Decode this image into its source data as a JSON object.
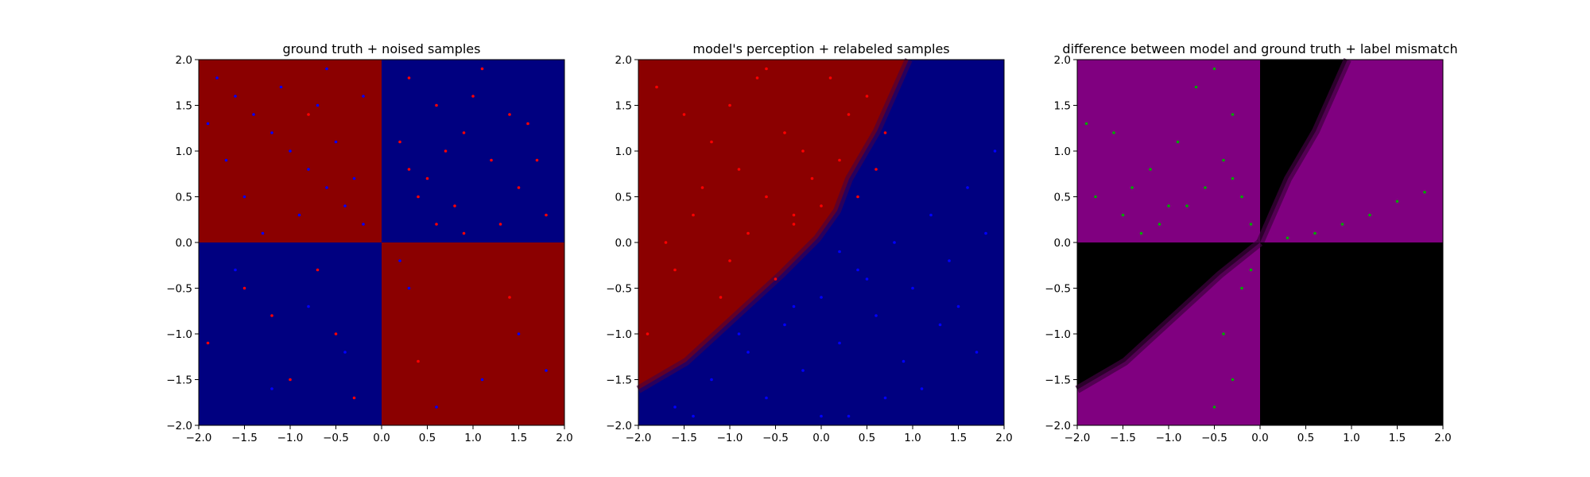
{
  "figure": {
    "background": "#ffffff"
  },
  "chart_data": [
    {
      "type": "scatter",
      "background": "checkerboard-quadrants",
      "title": "ground truth + noised samples",
      "xlabel": "",
      "ylabel": "",
      "xlim": [
        -2.0,
        2.0
      ],
      "ylim": [
        -2.0,
        2.0
      ],
      "xticks": [
        "-2.0",
        "-1.5",
        "-1.0",
        "-0.5",
        "0.0",
        "0.5",
        "1.0",
        "1.5",
        "2.0"
      ],
      "yticks": [
        "-2.0",
        "-1.5",
        "-1.0",
        "-0.5",
        "0.0",
        "0.5",
        "1.0",
        "1.5",
        "2.0"
      ],
      "grid": false,
      "region_colors": {
        "class_a": "#8b0000",
        "class_b": "#000080"
      },
      "point_colors": {
        "class_a": "#ff0000",
        "class_b": "#0000ff"
      },
      "series": [
        {
          "color": "#0000ff",
          "x": [
            -1.8,
            -1.6,
            -1.4,
            -1.2,
            -1.0,
            -0.8,
            -0.6,
            -0.4,
            -0.2,
            -1.7,
            -1.5,
            -1.1,
            -0.9,
            -0.7,
            -0.5,
            -0.3,
            -1.3,
            -0.6,
            -1.9,
            -0.2,
            1.5,
            0.3,
            1.1,
            0.6,
            -0.4,
            -1.6,
            -0.8,
            -1.2,
            0.2,
            1.8
          ],
          "y": [
            1.8,
            1.6,
            1.4,
            1.2,
            1.0,
            0.8,
            0.6,
            0.4,
            0.2,
            0.9,
            0.5,
            1.7,
            0.3,
            1.5,
            1.1,
            0.7,
            0.1,
            1.9,
            1.3,
            1.6,
            -1.0,
            -0.5,
            -1.5,
            -1.8,
            -1.2,
            -0.3,
            -0.7,
            -1.6,
            -0.2,
            -1.4
          ]
        },
        {
          "color": "#ff0000",
          "x": [
            0.3,
            0.6,
            0.9,
            1.2,
            1.5,
            1.8,
            0.4,
            0.7,
            1.0,
            1.3,
            1.6,
            0.2,
            0.5,
            0.8,
            1.1,
            1.4,
            0.9,
            0.3,
            1.7,
            0.6,
            -1.5,
            -0.5,
            -1.0,
            -0.7,
            -1.9,
            -0.3,
            -1.2,
            0.4,
            1.4,
            -0.8
          ],
          "y": [
            1.8,
            1.5,
            1.2,
            0.9,
            0.6,
            0.3,
            0.5,
            1.0,
            1.6,
            0.2,
            1.3,
            1.1,
            0.7,
            0.4,
            1.9,
            1.4,
            0.1,
            0.8,
            0.9,
            0.2,
            -0.5,
            -1.0,
            -1.5,
            -0.3,
            -1.1,
            -1.7,
            -0.8,
            -1.3,
            -0.6,
            1.4
          ]
        }
      ]
    },
    {
      "type": "scatter",
      "background": "diagonal-boundary",
      "title": "model's perception + relabeled samples",
      "xlabel": "",
      "ylabel": "",
      "xlim": [
        -2.0,
        2.0
      ],
      "ylim": [
        -2.0,
        2.0
      ],
      "xticks": [
        "-2.0",
        "-1.5",
        "-1.0",
        "-0.5",
        "0.0",
        "0.5",
        "1.0",
        "1.5",
        "2.0"
      ],
      "yticks": [
        "-2.0",
        "-1.5",
        "-1.0",
        "-0.5",
        "0.0",
        "0.5",
        "1.0",
        "1.5",
        "2.0"
      ],
      "grid": false,
      "region_colors": {
        "class_a": "#8b0000",
        "class_b": "#000080"
      },
      "series": [
        {
          "color": "#ff0000",
          "x": [
            -1.8,
            -1.5,
            -1.2,
            -0.9,
            -0.6,
            -0.3,
            0.0,
            0.2,
            -1.6,
            -1.3,
            -1.0,
            -0.7,
            -0.4,
            -0.1,
            0.3,
            -1.7,
            -1.1,
            -0.5,
            -0.8,
            0.4,
            0.6,
            0.5,
            -0.2,
            -1.4,
            -1.9,
            -0.6,
            0.7,
            -1.0,
            -0.3,
            0.1
          ],
          "y": [
            1.7,
            1.4,
            1.1,
            0.8,
            0.5,
            0.2,
            0.4,
            0.9,
            -0.3,
            0.6,
            1.5,
            1.8,
            1.2,
            0.7,
            1.4,
            0.0,
            -0.6,
            -0.4,
            0.1,
            0.5,
            0.8,
            1.6,
            1.0,
            0.3,
            -1.0,
            1.9,
            1.2,
            -0.2,
            0.3,
            1.8
          ]
        },
        {
          "color": "#0000ff",
          "x": [
            -1.6,
            -1.2,
            -0.8,
            -0.4,
            0.0,
            0.4,
            0.8,
            1.2,
            1.6,
            1.9,
            -0.6,
            -0.2,
            0.2,
            0.6,
            1.0,
            1.4,
            1.8,
            0.3,
            0.9,
            1.5,
            -0.9,
            -0.3,
            0.5,
            1.1,
            1.7,
            0.0,
            0.7,
            1.3,
            -1.4,
            0.2
          ],
          "y": [
            -1.8,
            -1.5,
            -1.2,
            -0.9,
            -0.6,
            -0.3,
            0.0,
            0.3,
            0.6,
            1.0,
            -1.7,
            -1.4,
            -1.1,
            -0.8,
            -0.5,
            -0.2,
            0.1,
            -1.9,
            -1.3,
            -0.7,
            -1.0,
            -0.7,
            -0.4,
            -1.6,
            -1.2,
            -1.9,
            -1.7,
            -0.9,
            -1.9,
            -0.1
          ]
        }
      ]
    },
    {
      "type": "scatter",
      "background": "difference-map",
      "title": "difference between model and ground truth + label mismatch",
      "xlabel": "",
      "ylabel": "",
      "xlim": [
        -2.0,
        2.0
      ],
      "ylim": [
        -2.0,
        2.0
      ],
      "xticks": [
        "-2.0",
        "-1.5",
        "-1.0",
        "-0.5",
        "0.0",
        "0.5",
        "1.0",
        "1.5",
        "2.0"
      ],
      "yticks": [
        "-2.0",
        "-1.5",
        "-1.0",
        "-0.5",
        "0.0",
        "0.5",
        "1.0",
        "1.5",
        "2.0"
      ],
      "grid": false,
      "region_colors": {
        "mismatch": "#800080",
        "match": "#000000"
      },
      "series": [
        {
          "color": "#00aa00",
          "x": [
            -1.8,
            -1.5,
            -1.2,
            -0.9,
            -0.6,
            -0.3,
            -0.1,
            -1.6,
            -1.3,
            -1.0,
            -0.7,
            -0.4,
            -0.2,
            -1.9,
            -1.1,
            -0.5,
            -0.8,
            -0.3,
            -1.4,
            0.3,
            0.6,
            0.9,
            1.2,
            1.5,
            1.8,
            -0.2,
            -0.4,
            -0.3,
            -0.1,
            -0.5
          ],
          "y": [
            0.5,
            0.3,
            0.8,
            1.1,
            0.6,
            1.4,
            0.2,
            1.2,
            0.1,
            0.4,
            1.7,
            0.9,
            0.5,
            1.3,
            0.2,
            1.9,
            0.4,
            0.7,
            0.6,
            0.05,
            0.1,
            0.2,
            0.3,
            0.45,
            0.55,
            -0.5,
            -1.0,
            -1.5,
            -0.3,
            -1.8
          ]
        }
      ]
    }
  ]
}
